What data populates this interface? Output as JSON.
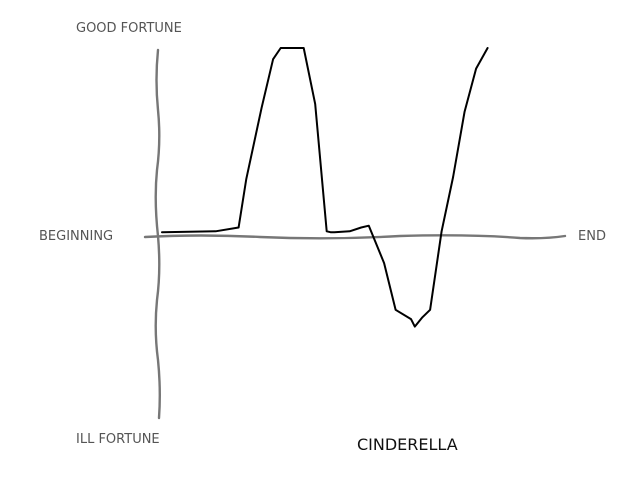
{
  "chart_data": {
    "type": "line",
    "title": "CINDERELLA",
    "ylabel_top": "GOOD FORTUNE",
    "ylabel_bottom": "ILL FORTUNE",
    "xlabel_left": "BEGINNING",
    "xlabel_right": "END",
    "grid": false,
    "xlim": [
      0,
      100
    ],
    "ylim": [
      -100,
      100
    ],
    "series": [
      {
        "color": "#000000",
        "x": [
          0,
          14,
          20,
          22,
          26,
          29,
          31,
          33,
          37,
          40,
          43,
          44,
          45,
          49,
          52,
          54,
          58,
          61,
          65,
          66,
          68,
          70,
          73,
          76,
          79,
          82,
          85
        ],
        "y": [
          1.5,
          2,
          4,
          30,
          68,
          94,
          100,
          100,
          100,
          70,
          2,
          1.5,
          1.5,
          2,
          4,
          5,
          -15,
          -40,
          -45,
          -49,
          -44,
          -40,
          2,
          31,
          66,
          89,
          100
        ]
      }
    ],
    "axis_color": "#777777"
  }
}
